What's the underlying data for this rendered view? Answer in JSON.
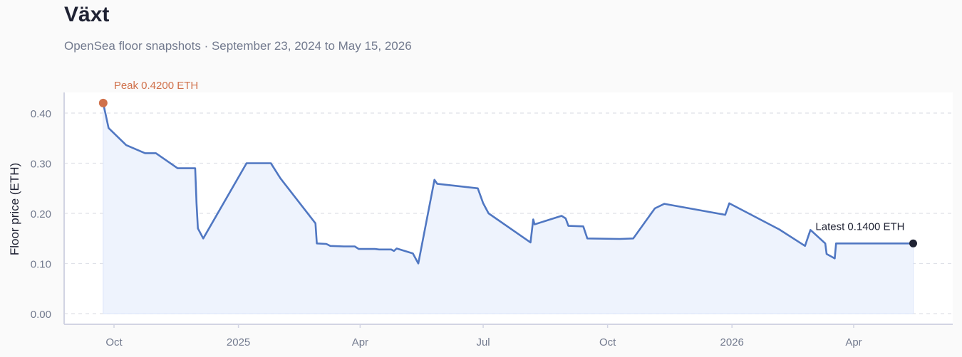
{
  "title": "Växt",
  "subtitle": "OpenSea floor snapshots · September 23, 2024 to May 15, 2026",
  "colors": {
    "line": "#5077c2",
    "fill": "#eef3fd",
    "peak": "#d0714b",
    "latest": "#1f2233",
    "grid": "#dfe1e8",
    "axis": "#d2d4e3",
    "tick_text": "#727a8e"
  },
  "chart_data": {
    "type": "line",
    "ylabel": "Floor price (ETH)",
    "xlabel": "",
    "ylim": [
      0,
      0.42
    ],
    "yticks": [
      0.0,
      0.1,
      0.2,
      0.3,
      0.4
    ],
    "ytick_labels": [
      "0.00",
      "0.10",
      "0.20",
      "0.30",
      "0.40"
    ],
    "x_range": [
      "2024-09-16",
      "2026-05-24"
    ],
    "xticks": [
      "2024-10-01",
      "2025-01-01",
      "2025-04-01",
      "2025-07-01",
      "2025-10-01",
      "2026-01-01",
      "2026-04-01"
    ],
    "xtick_labels": [
      "Oct",
      "2025",
      "Apr",
      "Jul",
      "Oct",
      "2026",
      "Apr"
    ],
    "grid": true,
    "series": [
      {
        "points": [
          [
            "2024-09-23",
            0.42
          ],
          [
            "2024-09-27",
            0.37
          ],
          [
            "2024-10-10",
            0.336
          ],
          [
            "2024-10-24",
            0.32
          ],
          [
            "2024-11-01",
            0.32
          ],
          [
            "2024-11-17",
            0.29
          ],
          [
            "2024-11-30",
            0.29
          ],
          [
            "2024-12-01",
            0.22
          ],
          [
            "2024-12-02",
            0.17
          ],
          [
            "2024-12-06",
            0.15
          ],
          [
            "2025-01-07",
            0.3
          ],
          [
            "2025-01-25",
            0.3
          ],
          [
            "2025-02-01",
            0.27
          ],
          [
            "2025-02-27",
            0.18
          ],
          [
            "2025-02-28",
            0.14
          ],
          [
            "2025-03-07",
            0.139
          ],
          [
            "2025-03-10",
            0.135
          ],
          [
            "2025-03-20",
            0.134
          ],
          [
            "2025-03-28",
            0.134
          ],
          [
            "2025-03-31",
            0.129
          ],
          [
            "2025-04-12",
            0.129
          ],
          [
            "2025-04-15",
            0.128
          ],
          [
            "2025-04-24",
            0.128
          ],
          [
            "2025-04-26",
            0.125
          ],
          [
            "2025-04-28",
            0.13
          ],
          [
            "2025-05-10",
            0.12
          ],
          [
            "2025-05-14",
            0.1
          ],
          [
            "2025-05-26",
            0.267
          ],
          [
            "2025-05-28",
            0.259
          ],
          [
            "2025-06-27",
            0.25
          ],
          [
            "2025-07-01",
            0.22
          ],
          [
            "2025-07-05",
            0.2
          ],
          [
            "2025-08-05",
            0.142
          ],
          [
            "2025-08-07",
            0.188
          ],
          [
            "2025-08-08",
            0.178
          ],
          [
            "2025-08-28",
            0.195
          ],
          [
            "2025-08-31",
            0.19
          ],
          [
            "2025-09-02",
            0.175
          ],
          [
            "2025-09-13",
            0.174
          ],
          [
            "2025-09-16",
            0.15
          ],
          [
            "2025-10-10",
            0.149
          ],
          [
            "2025-10-20",
            0.15
          ],
          [
            "2025-11-05",
            0.21
          ],
          [
            "2025-11-12",
            0.219
          ],
          [
            "2025-12-27",
            0.197
          ],
          [
            "2025-12-30",
            0.22
          ],
          [
            "2026-02-05",
            0.168
          ],
          [
            "2026-02-24",
            0.135
          ],
          [
            "2026-02-28",
            0.167
          ],
          [
            "2026-03-11",
            0.14
          ],
          [
            "2026-03-12",
            0.119
          ],
          [
            "2026-03-18",
            0.11
          ],
          [
            "2026-03-19",
            0.14
          ],
          [
            "2026-05-15",
            0.14
          ]
        ]
      }
    ],
    "annotations": {
      "peak": {
        "label": "Peak 0.4200 ETH",
        "date": "2024-09-23",
        "value": 0.42
      },
      "latest": {
        "label": "Latest 0.1400 ETH",
        "date": "2026-05-15",
        "value": 0.14
      }
    }
  }
}
